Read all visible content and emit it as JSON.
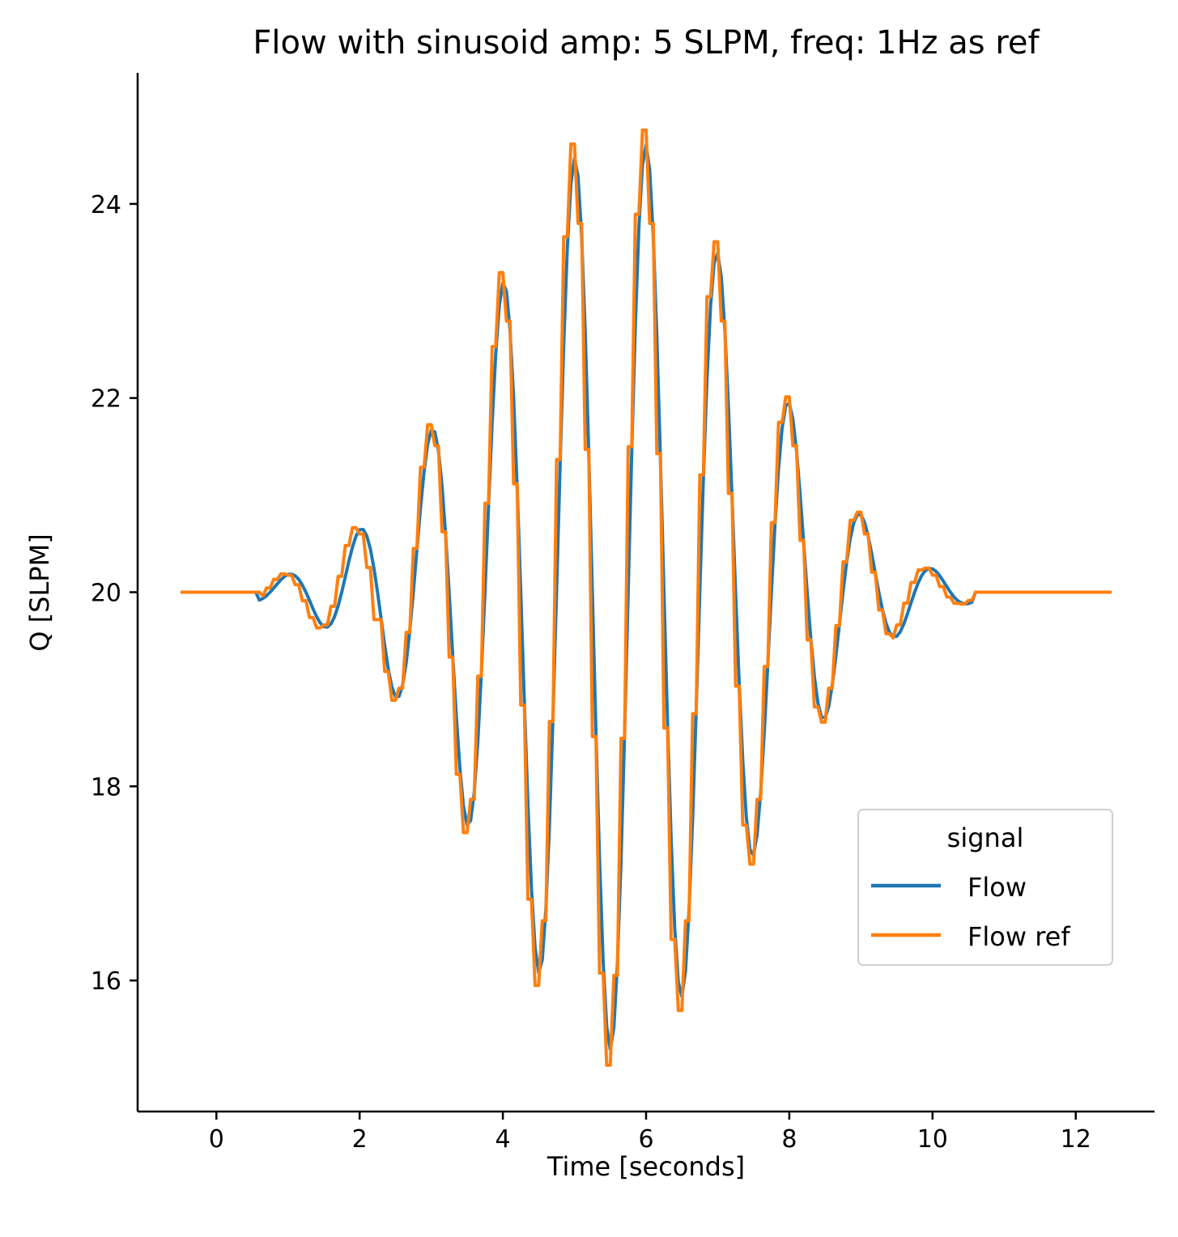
{
  "chart_data": {
    "type": "line",
    "title": "Flow with sinusoid amp: 5 SLPM, freq: 1Hz as ref",
    "xlabel": "Time [seconds]",
    "ylabel": "Q [SLPM]",
    "xlim": [
      -1.1,
      13.1
    ],
    "ylim": [
      14.65,
      25.35
    ],
    "xticks": [
      0,
      2,
      4,
      6,
      8,
      10,
      12
    ],
    "xtick_labels": [
      "0",
      "2",
      "4",
      "6",
      "8",
      "10",
      "12"
    ],
    "yticks": [
      16,
      18,
      20,
      22,
      24
    ],
    "ytick_labels": [
      "16",
      "18",
      "20",
      "22",
      "24"
    ],
    "grid": false,
    "legend": {
      "title": "signal",
      "position": "center-right"
    },
    "series": [
      {
        "name": "Flow",
        "color": "#1f77b4",
        "description": "Gaussian-windowed 1 Hz sinusoid around 20 SLPM, amplitude envelope peaking ~4.7 SLPM near t=5.5s, lagging the reference by ~0.1s",
        "baseline": 20.0,
        "start": -0.5,
        "end": 12.5,
        "active_start": 0.6,
        "active_end": 10.6,
        "frequency": 1.0,
        "peak_amplitude": 4.72,
        "envelope_center": 5.5,
        "envelope_width": 2.55,
        "lag": 0.1,
        "peaks": [
          {
            "t": 1.0,
            "v": 20.4
          },
          {
            "t": 1.45,
            "v": 19.4
          },
          {
            "t": 2.0,
            "v": 21.0
          },
          {
            "t": 2.5,
            "v": 18.5
          },
          {
            "t": 3.0,
            "v": 22.15
          },
          {
            "t": 3.5,
            "v": 17.15
          },
          {
            "t": 4.0,
            "v": 23.5
          },
          {
            "t": 4.5,
            "v": 16.0
          },
          {
            "t": 5.0,
            "v": 24.45
          },
          {
            "t": 5.45,
            "v": 15.35
          },
          {
            "t": 6.0,
            "v": 24.65
          },
          {
            "t": 6.45,
            "v": 15.55
          },
          {
            "t": 7.0,
            "v": 24.1
          },
          {
            "t": 7.5,
            "v": 16.5
          },
          {
            "t": 8.0,
            "v": 22.85
          },
          {
            "t": 8.45,
            "v": 17.8
          },
          {
            "t": 9.0,
            "v": 21.55
          },
          {
            "t": 9.45,
            "v": 19.0
          },
          {
            "t": 10.0,
            "v": 20.6
          },
          {
            "t": 10.5,
            "v": 19.6
          }
        ]
      },
      {
        "name": "Flow ref",
        "color": "#ff7f0e",
        "description": "Reference sinusoid, amp 5 SLPM, freq 1 Hz, Gaussian-windowed around 20 SLPM, sample-and-hold steps",
        "baseline": 20.0,
        "start": -0.5,
        "end": 12.5,
        "active_start": 0.6,
        "active_end": 10.6,
        "frequency": 1.0,
        "peak_amplitude": 4.88,
        "envelope_center": 5.5,
        "envelope_width": 2.55,
        "lag": 0.0,
        "peaks": [
          {
            "t": 0.9,
            "v": 20.43
          },
          {
            "t": 1.4,
            "v": 19.35
          },
          {
            "t": 1.9,
            "v": 21.08
          },
          {
            "t": 2.4,
            "v": 18.35
          },
          {
            "t": 2.9,
            "v": 22.3
          },
          {
            "t": 3.4,
            "v": 17.0
          },
          {
            "t": 3.9,
            "v": 23.68
          },
          {
            "t": 4.4,
            "v": 15.75
          },
          {
            "t": 4.85,
            "v": 24.7
          },
          {
            "t": 5.35,
            "v": 15.1
          },
          {
            "t": 5.9,
            "v": 24.85
          },
          {
            "t": 6.4,
            "v": 15.4
          },
          {
            "t": 6.9,
            "v": 24.2
          },
          {
            "t": 7.4,
            "v": 16.4
          },
          {
            "t": 7.9,
            "v": 22.95
          },
          {
            "t": 8.4,
            "v": 17.85
          },
          {
            "t": 8.9,
            "v": 21.58
          },
          {
            "t": 9.4,
            "v": 19.0
          },
          {
            "t": 9.9,
            "v": 20.62
          },
          {
            "t": 10.35,
            "v": 19.6
          }
        ]
      }
    ]
  }
}
